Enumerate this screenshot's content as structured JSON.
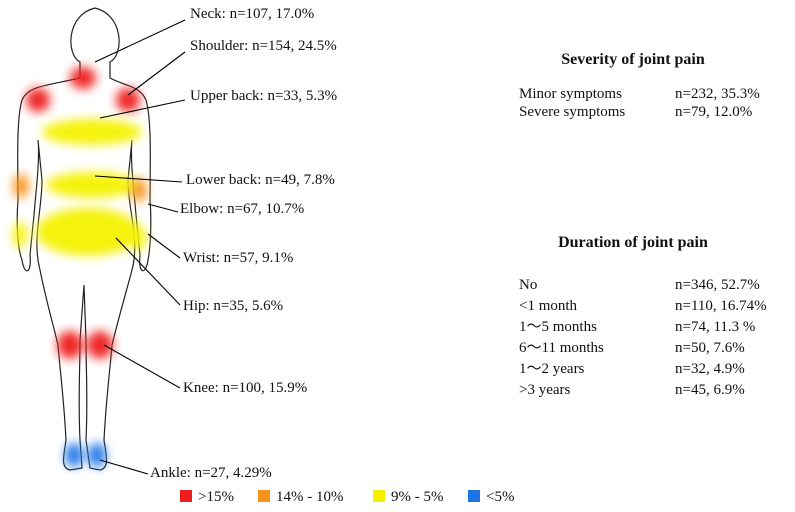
{
  "labels": [
    "Neck: n=107, 17.0%",
    "Shoulder: n=154, 24.5%",
    "Upper back: n=33, 5.3%",
    "Lower back: n=49, 7.8%",
    "Elbow: n=67, 10.7%",
    "Wrist: n=57, 9.1%",
    "Hip: n=35, 5.6%",
    "Knee: n=100, 15.9%",
    "Ankle: n=27, 4.29%"
  ],
  "severity": {
    "title": "Severity of joint pain",
    "rows": [
      [
        "Minor symptoms",
        "n=232, 35.3%"
      ],
      [
        "Severe symptoms",
        "n=79, 12.0%"
      ]
    ]
  },
  "duration": {
    "title": "Duration of joint pain",
    "rows": [
      [
        "No",
        "n=346, 52.7%"
      ],
      [
        "<1 month",
        "n=110, 16.74%"
      ],
      [
        "1～5 months",
        "n=74, 11.3 %"
      ],
      [
        "6～11 months",
        "n=50, 7.6%"
      ],
      [
        "1～2 years",
        "n=32, 4.9%"
      ],
      [
        ">3 years",
        "n=45, 6.9%"
      ]
    ]
  },
  "legend": [
    {
      "label": ">15%",
      "color": "#ee1c1c"
    },
    {
      "label": "14% - 10%",
      "color": "#f7941d"
    },
    {
      "label": "9% - 5%",
      "color": "#f5f200"
    },
    {
      "label": "<5%",
      "color": "#1c74e8"
    }
  ]
}
